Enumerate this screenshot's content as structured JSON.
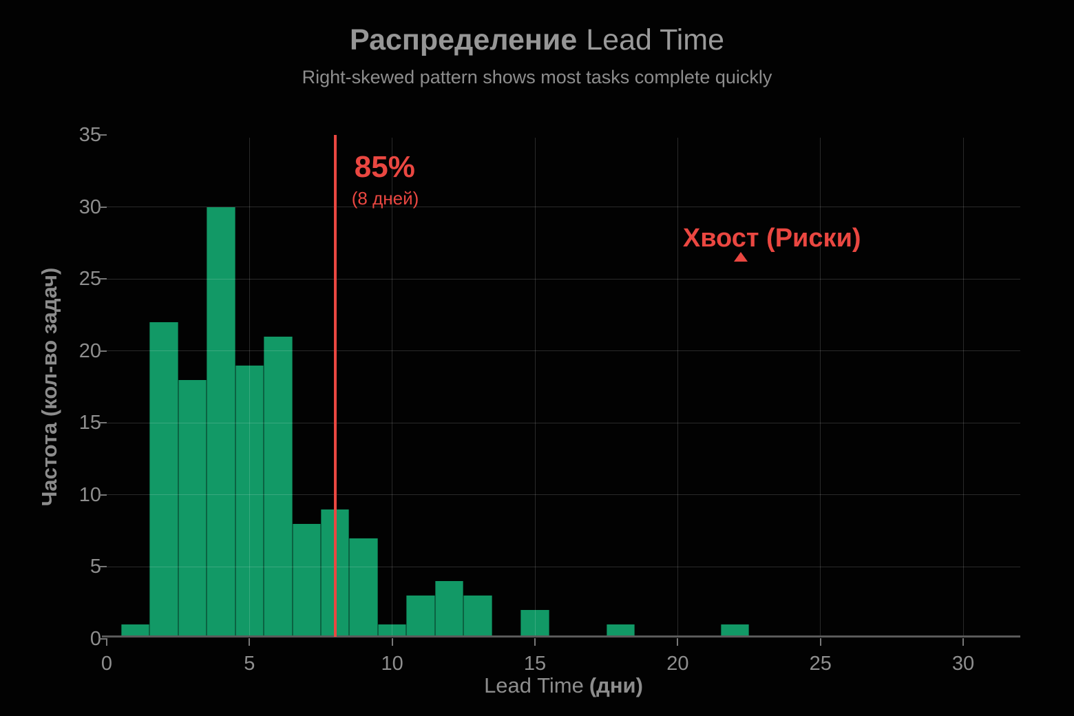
{
  "header": {
    "title_bold": "Распределение",
    "title_regular": "Lead Time",
    "subtitle": "Right-skewed pattern shows most tasks complete quickly"
  },
  "chart_data": {
    "type": "bar",
    "subtype": "histogram",
    "title": "Распределение Lead Time",
    "subtitle": "Right-skewed pattern shows most tasks complete quickly",
    "xlabel": "Lead Time (дни)",
    "xlabel_regular": "Lead Time",
    "xlabel_bold": "(дни)",
    "ylabel": "Частота (кол-во задач)",
    "xlim": [
      0,
      32
    ],
    "ylim": [
      0,
      35
    ],
    "x_ticks": [
      0,
      5,
      10,
      15,
      20,
      25,
      30
    ],
    "y_ticks": [
      0,
      5,
      10,
      15,
      20,
      25,
      30,
      35
    ],
    "grid_x": [
      5,
      10,
      15,
      20,
      25,
      30
    ],
    "grid_y": [
      5,
      10,
      15,
      20,
      25,
      30
    ],
    "grid_on": true,
    "bin_width": 1,
    "bin_centers": [
      1,
      2,
      3,
      4,
      5,
      6,
      7,
      8,
      9,
      10,
      11,
      12,
      13,
      14,
      15,
      16,
      17,
      18,
      19,
      20,
      21,
      22
    ],
    "values": [
      1,
      22,
      18,
      30,
      19,
      21,
      8,
      9,
      7,
      1,
      3,
      4,
      3,
      0,
      2,
      0,
      0,
      1,
      0,
      0,
      0,
      1
    ],
    "total_tasks": 150,
    "bar_color": "#129966",
    "accent_red": "#ea4741",
    "threshold_line": {
      "x": 8,
      "label": "85%",
      "sublabel": "(8 дней)",
      "color": "#ea4741"
    },
    "tail_annotation": {
      "label": "Хвост (Риски)",
      "marker": "triangle-up",
      "marker_x": 22.2,
      "marker_y": 26.85,
      "label_x": 23.3,
      "label_y": 26.8,
      "color": "#ea4741"
    }
  }
}
